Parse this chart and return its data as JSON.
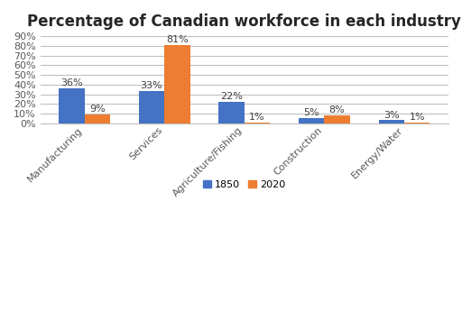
{
  "title": "Percentage of Canadian workforce in each industry",
  "categories": [
    "Manufacturing",
    "Services",
    "Agriculture/Fishing",
    "Construction",
    "Energy/Water"
  ],
  "values_1850": [
    36,
    33,
    22,
    5,
    3
  ],
  "values_2020": [
    9,
    81,
    1,
    8,
    1
  ],
  "color_1850": "#4472C4",
  "color_2020": "#ED7D31",
  "legend_labels": [
    "1850",
    "2020"
  ],
  "ylim": [
    0,
    90
  ],
  "yticks": [
    0,
    10,
    20,
    30,
    40,
    50,
    60,
    70,
    80,
    90
  ],
  "ytick_labels": [
    "0%",
    "10%",
    "20%",
    "30%",
    "40%",
    "50%",
    "60%",
    "70%",
    "80%",
    "90%"
  ],
  "bar_width": 0.32,
  "title_fontsize": 12,
  "tick_label_fontsize": 8,
  "bar_label_fontsize": 8,
  "legend_fontsize": 8,
  "background_color": "#ffffff"
}
